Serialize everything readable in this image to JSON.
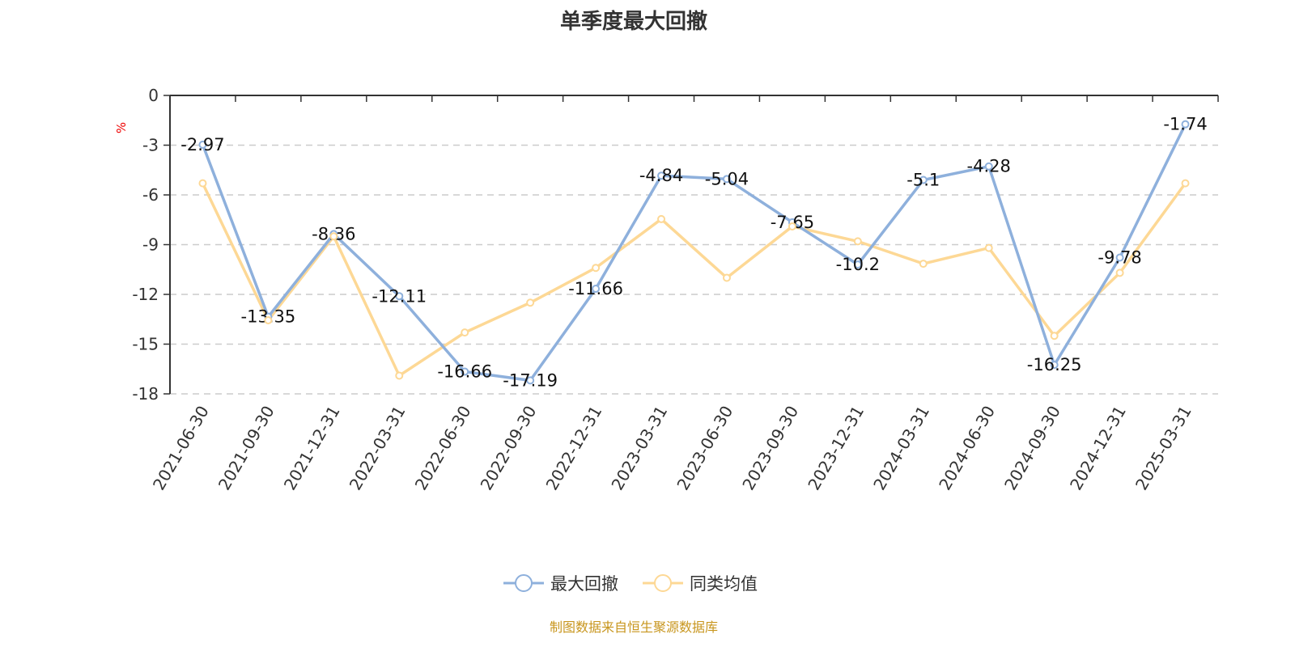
{
  "chart_data": {
    "type": "line",
    "title": "单季度最大回撤",
    "ylabel": "%",
    "ylim": [
      -18,
      0
    ],
    "yticks": [
      0,
      -3,
      -6,
      -9,
      -12,
      -15,
      -18
    ],
    "grid": true,
    "legend_placement": "bottom",
    "categories": [
      "2021-06-30",
      "2021-09-30",
      "2021-12-31",
      "2022-03-31",
      "2022-06-30",
      "2022-09-30",
      "2022-12-31",
      "2023-03-31",
      "2023-06-30",
      "2023-09-30",
      "2023-12-31",
      "2024-03-31",
      "2024-06-30",
      "2024-09-30",
      "2024-12-31",
      "2025-03-31"
    ],
    "series": [
      {
        "name": "最大回撤",
        "color": "#8eb0dc",
        "labels": true,
        "values": [
          -2.97,
          -13.35,
          -8.36,
          -12.11,
          -16.66,
          -17.19,
          -11.66,
          -4.84,
          -5.04,
          -7.65,
          -10.2,
          -5.1,
          -4.28,
          -16.25,
          -9.78,
          -1.74
        ]
      },
      {
        "name": "同类均值",
        "color": "#fdd895",
        "labels": false,
        "values": [
          -5.3,
          -13.56,
          -8.5,
          -16.9,
          -14.3,
          -12.5,
          -10.4,
          -7.46,
          -11.0,
          -7.9,
          -8.8,
          -10.15,
          -9.2,
          -14.5,
          -10.7,
          -5.3
        ]
      }
    ]
  },
  "source": "制图数据来自恒生聚源数据库"
}
